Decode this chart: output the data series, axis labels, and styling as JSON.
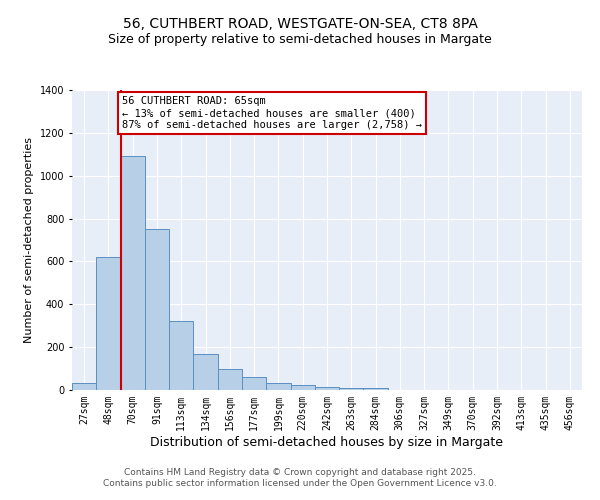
{
  "title1": "56, CUTHBERT ROAD, WESTGATE-ON-SEA, CT8 8PA",
  "title2": "Size of property relative to semi-detached houses in Margate",
  "xlabel": "Distribution of semi-detached houses by size in Margate",
  "ylabel": "Number of semi-detached properties",
  "categories": [
    "27sqm",
    "48sqm",
    "70sqm",
    "91sqm",
    "113sqm",
    "134sqm",
    "156sqm",
    "177sqm",
    "199sqm",
    "220sqm",
    "242sqm",
    "263sqm",
    "284sqm",
    "306sqm",
    "327sqm",
    "349sqm",
    "370sqm",
    "392sqm",
    "413sqm",
    "435sqm",
    "456sqm"
  ],
  "values": [
    35,
    620,
    1090,
    750,
    320,
    170,
    100,
    60,
    35,
    25,
    15,
    10,
    10,
    0,
    0,
    0,
    0,
    0,
    0,
    0,
    0
  ],
  "bar_color": "#b8cfe8",
  "bar_edge_color": "#5a8fc2",
  "vline_x": 1.5,
  "vline_color": "#cc0000",
  "annotation_title": "56 CUTHBERT ROAD: 65sqm",
  "annotation_line1": "← 13% of semi-detached houses are smaller (400)",
  "annotation_line2": "87% of semi-detached houses are larger (2,758) →",
  "annotation_box_color": "#cc0000",
  "ylim": [
    0,
    1400
  ],
  "yticks": [
    0,
    200,
    400,
    600,
    800,
    1000,
    1200,
    1400
  ],
  "footnote1": "Contains HM Land Registry data © Crown copyright and database right 2025.",
  "footnote2": "Contains public sector information licensed under the Open Government Licence v3.0.",
  "bg_color": "#e8eef8",
  "title1_fontsize": 10,
  "title2_fontsize": 9,
  "xlabel_fontsize": 9,
  "ylabel_fontsize": 8,
  "tick_fontsize": 7,
  "annotation_fontsize": 7.5,
  "footnote_fontsize": 6.5
}
